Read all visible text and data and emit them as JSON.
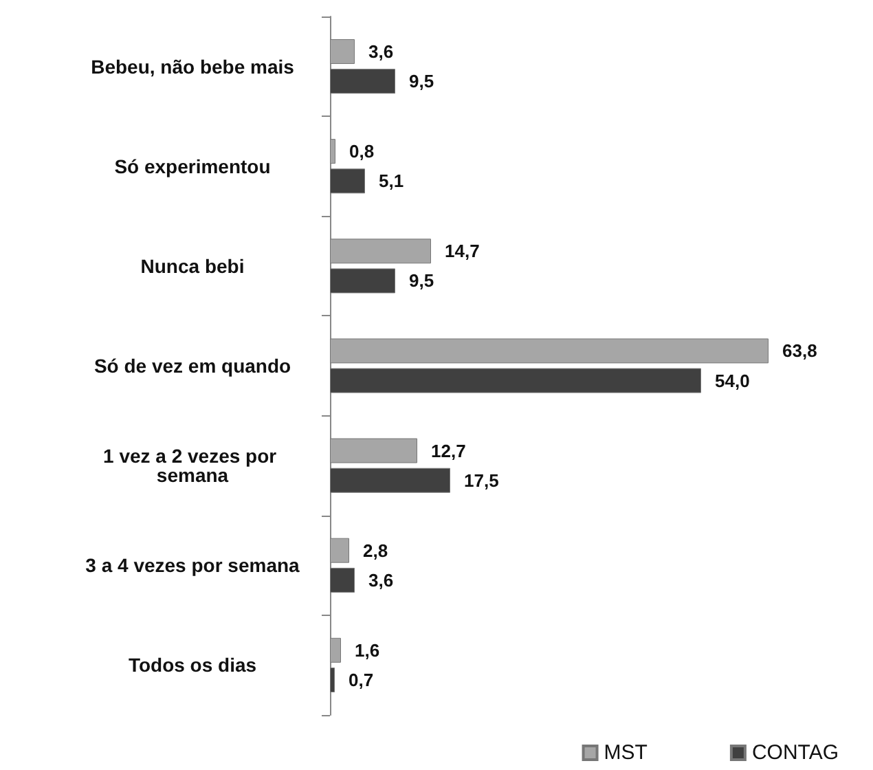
{
  "chart_data": {
    "type": "bar",
    "orientation": "horizontal",
    "categories": [
      "Bebeu, não bebe mais",
      "Só experimentou",
      "Nunca bebi",
      "Só de vez em quando",
      "1 vez a 2 vezes por semana",
      "3 a 4 vezes por semana",
      "Todos os dias"
    ],
    "series": [
      {
        "name": "MST",
        "color": "#a6a6a6",
        "values": [
          3.6,
          0.8,
          14.7,
          63.8,
          12.7,
          2.8,
          1.6
        ],
        "value_labels": [
          "3,6",
          "0,8",
          "14,7",
          "63,8",
          "12,7",
          "2,8",
          "1,6"
        ]
      },
      {
        "name": "CONTAG",
        "color": "#404040",
        "values": [
          9.5,
          5.1,
          9.5,
          54.0,
          17.5,
          3.6,
          0.7
        ],
        "value_labels": [
          "9,5",
          "5,1",
          "9,5",
          "54,0",
          "17,5",
          "3,6",
          "0,7"
        ]
      }
    ],
    "legend": "bottom right"
  }
}
